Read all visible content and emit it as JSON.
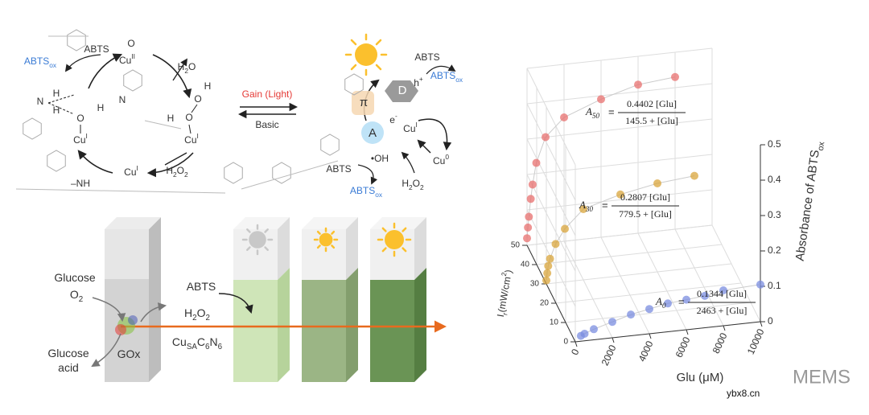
{
  "scheme": {
    "labels": [
      [
        {
          "t": "ABTS"
        }
      ],
      [
        {
          "t": "ABTS"
        },
        {
          "t": "ox",
          "pos": "sub"
        }
      ],
      [
        {
          "t": "O"
        }
      ],
      [
        {
          "t": "Cu"
        },
        {
          "t": "II",
          "pos": "sup"
        }
      ],
      [
        {
          "t": "H"
        },
        {
          "t": "2",
          "pos": "sub"
        },
        {
          "t": "O"
        }
      ],
      [
        {
          "t": "H"
        }
      ],
      [
        {
          "t": "H"
        }
      ],
      [
        {
          "t": "N"
        }
      ],
      [
        {
          "t": "O"
        }
      ],
      [
        {
          "t": "H"
        }
      ],
      [
        {
          "t": "N"
        }
      ],
      [
        {
          "t": "Cu"
        },
        {
          "t": "I",
          "pos": "sup"
        }
      ],
      [
        {
          "t": "H"
        }
      ],
      [
        {
          "t": "O"
        }
      ],
      [
        {
          "t": "O"
        }
      ],
      [
        {
          "t": "H"
        }
      ],
      [
        {
          "t": "Cu"
        },
        {
          "t": "I",
          "pos": "sup"
        }
      ],
      [
        {
          "t": "Cu"
        },
        {
          "t": "I",
          "pos": "sup"
        }
      ],
      [
        {
          "t": "–NH"
        }
      ],
      [
        {
          "t": "H"
        },
        {
          "t": "2",
          "pos": "sub"
        },
        {
          "t": "O"
        },
        {
          "t": "2",
          "pos": "sub"
        }
      ],
      [
        {
          "t": "Gain (Light)"
        }
      ],
      [
        {
          "t": "Basic"
        }
      ],
      [
        {
          "t": "ABTS"
        }
      ],
      [
        {
          "t": "ABTS"
        },
        {
          "t": "ox",
          "pos": "sub"
        }
      ],
      [
        {
          "t": "h"
        },
        {
          "t": "+",
          "pos": "sup"
        }
      ],
      [
        {
          "t": "π"
        }
      ],
      [
        {
          "t": "D"
        }
      ],
      [
        {
          "t": "A"
        }
      ],
      [
        {
          "t": "e"
        },
        {
          "t": "-",
          "pos": "sup"
        }
      ],
      [
        {
          "t": "Cu"
        },
        {
          "t": "I",
          "pos": "sup"
        }
      ],
      [
        {
          "t": "Cu"
        },
        {
          "t": "0",
          "pos": "sup"
        }
      ],
      [
        {
          "t": "•OH"
        }
      ],
      [
        {
          "t": "ABTS"
        }
      ],
      [
        {
          "t": "ABTS"
        },
        {
          "t": "ox",
          "pos": "sub"
        }
      ],
      [
        {
          "t": "H"
        },
        {
          "t": "2",
          "pos": "sub"
        },
        {
          "t": "O"
        },
        {
          "t": "2",
          "pos": "sub"
        }
      ]
    ]
  },
  "device": {
    "labels": [
      [
        {
          "t": "Glucose"
        }
      ],
      [
        {
          "t": "O"
        },
        {
          "t": "2",
          "pos": "sub"
        }
      ],
      [
        {
          "t": "Glucose"
        }
      ],
      [
        {
          "t": "acid"
        }
      ],
      [
        {
          "t": "GOx"
        }
      ],
      [
        {
          "t": "ABTS"
        }
      ],
      [
        {
          "t": "H"
        },
        {
          "t": "2",
          "pos": "sub"
        },
        {
          "t": "O"
        },
        {
          "t": "2",
          "pos": "sub"
        }
      ],
      [
        {
          "t": "Cu"
        },
        {
          "t": "SA",
          "pos": "sub"
        },
        {
          "t": "C"
        },
        {
          "t": "6",
          "pos": "sub"
        },
        {
          "t": "N"
        },
        {
          "t": "6",
          "pos": "sub"
        }
      ]
    ]
  },
  "chart_data": {
    "type": "scatter3d",
    "x_label": "Glu (μM)",
    "y_label": [
      {
        "t": "I"
      },
      {
        "t": "r",
        "pos": "sub"
      },
      {
        "t": "(mW/cm"
      },
      {
        "t": "2",
        "pos": "sup"
      },
      {
        "t": ")"
      }
    ],
    "z_label": [
      {
        "t": "Absorbance of ABTS"
      },
      {
        "t": "ox",
        "pos": "sub"
      }
    ],
    "xlim": [
      0,
      10000
    ],
    "xticks": [
      0,
      2000,
      4000,
      6000,
      8000,
      10000
    ],
    "ylim": [
      0,
      50
    ],
    "yticks": [
      0,
      10,
      20,
      30,
      40,
      50
    ],
    "zlim": [
      0,
      0.5
    ],
    "zticks": [
      0,
      0.1,
      0.2,
      0.3,
      0.4,
      0.5
    ],
    "grid": true,
    "series": [
      {
        "color": "#e8706f",
        "ir": 50,
        "x": [
          0,
          50,
          100,
          200,
          300,
          500,
          1000,
          2000,
          4000,
          6000,
          8000
        ],
        "values": [
          0.02,
          0.05,
          0.08,
          0.13,
          0.17,
          0.23,
          0.3,
          0.35,
          0.39,
          0.42,
          0.43
        ],
        "equation": {
          "symbol": "A",
          "sub": "50",
          "equals": "=",
          "numerator": "0.4402 [Glu]",
          "denominator": "145.5 + [Glu]"
        }
      },
      {
        "color": "#d9a63c",
        "ir": 30,
        "x": [
          0,
          50,
          100,
          200,
          500,
          1000,
          2000,
          4000,
          6000,
          8000
        ],
        "values": [
          0.01,
          0.03,
          0.05,
          0.07,
          0.11,
          0.15,
          0.2,
          0.23,
          0.25,
          0.26
        ],
        "equation": {
          "symbol": "A",
          "sub": "30",
          "equals": "=",
          "numerator": "0.2807 [Glu]",
          "denominator": "779.5 + [Glu]"
        }
      },
      {
        "color": "#7b8ee0",
        "ir": 0,
        "x": [
          300,
          500,
          1000,
          2000,
          3000,
          4000,
          5000,
          6000,
          7000,
          8000,
          10000
        ],
        "values": [
          0.015,
          0.02,
          0.03,
          0.045,
          0.06,
          0.07,
          0.08,
          0.085,
          0.09,
          0.1,
          0.105
        ],
        "equation": {
          "symbol": "A",
          "sub": "0",
          "equals": "=",
          "numerator": "0.1344 [Glu]",
          "denominator": "2463 + [Glu]"
        }
      }
    ]
  },
  "watermark": {
    "brand": "MEMS",
    "site": "ybx8.cn"
  }
}
